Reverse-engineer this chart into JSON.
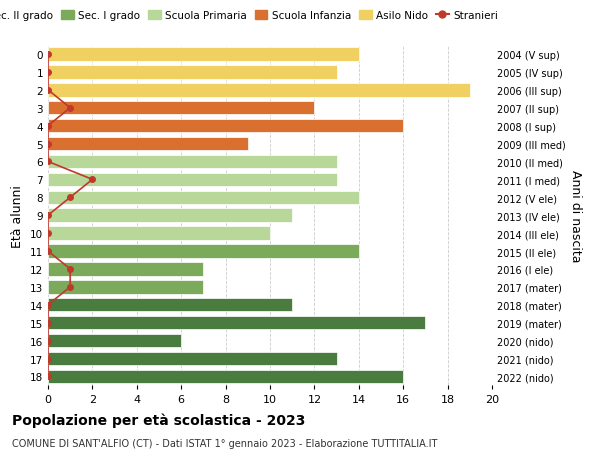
{
  "ages": [
    18,
    17,
    16,
    15,
    14,
    13,
    12,
    11,
    10,
    9,
    8,
    7,
    6,
    5,
    4,
    3,
    2,
    1,
    0
  ],
  "right_labels": [
    "2004 (V sup)",
    "2005 (IV sup)",
    "2006 (III sup)",
    "2007 (II sup)",
    "2008 (I sup)",
    "2009 (III med)",
    "2010 (II med)",
    "2011 (I med)",
    "2012 (V ele)",
    "2013 (IV ele)",
    "2014 (III ele)",
    "2015 (II ele)",
    "2016 (I ele)",
    "2017 (mater)",
    "2018 (mater)",
    "2019 (mater)",
    "2020 (nido)",
    "2021 (nido)",
    "2022 (nido)"
  ],
  "bar_values": [
    16,
    13,
    6,
    17,
    11,
    7,
    7,
    14,
    10,
    11,
    14,
    13,
    13,
    9,
    16,
    12,
    19,
    13,
    14
  ],
  "bar_colors": [
    "#4a7c40",
    "#4a7c40",
    "#4a7c40",
    "#4a7c40",
    "#4a7c40",
    "#7aaa5a",
    "#7aaa5a",
    "#7aaa5a",
    "#b8d89a",
    "#b8d89a",
    "#b8d89a",
    "#b8d89a",
    "#b8d89a",
    "#d97030",
    "#d97030",
    "#d97030",
    "#f0d060",
    "#f0d060",
    "#f0d060"
  ],
  "stranieri_values": [
    0,
    0,
    0,
    0,
    0,
    1,
    1,
    0,
    0,
    0,
    1,
    2,
    0,
    0,
    0,
    1,
    0,
    0,
    0
  ],
  "stranieri_color": "#c0392b",
  "legend_labels": [
    "Sec. II grado",
    "Sec. I grado",
    "Scuola Primaria",
    "Scuola Infanzia",
    "Asilo Nido",
    "Stranieri"
  ],
  "legend_colors": [
    "#4a7c40",
    "#7aaa5a",
    "#b8d89a",
    "#d97030",
    "#f0d060",
    "#c0392b"
  ],
  "ylabel_left": "Età alunni",
  "ylabel_right": "Anni di nascita",
  "xlim": [
    0,
    20
  ],
  "xticks": [
    0,
    2,
    4,
    6,
    8,
    10,
    12,
    14,
    16,
    18,
    20
  ],
  "title": "Popolazione per età scolastica - 2023",
  "subtitle": "COMUNE DI SANT'ALFIO (CT) - Dati ISTAT 1° gennaio 2023 - Elaborazione TUTTITALIA.IT",
  "bg_color": "#ffffff",
  "grid_color": "#cccccc"
}
